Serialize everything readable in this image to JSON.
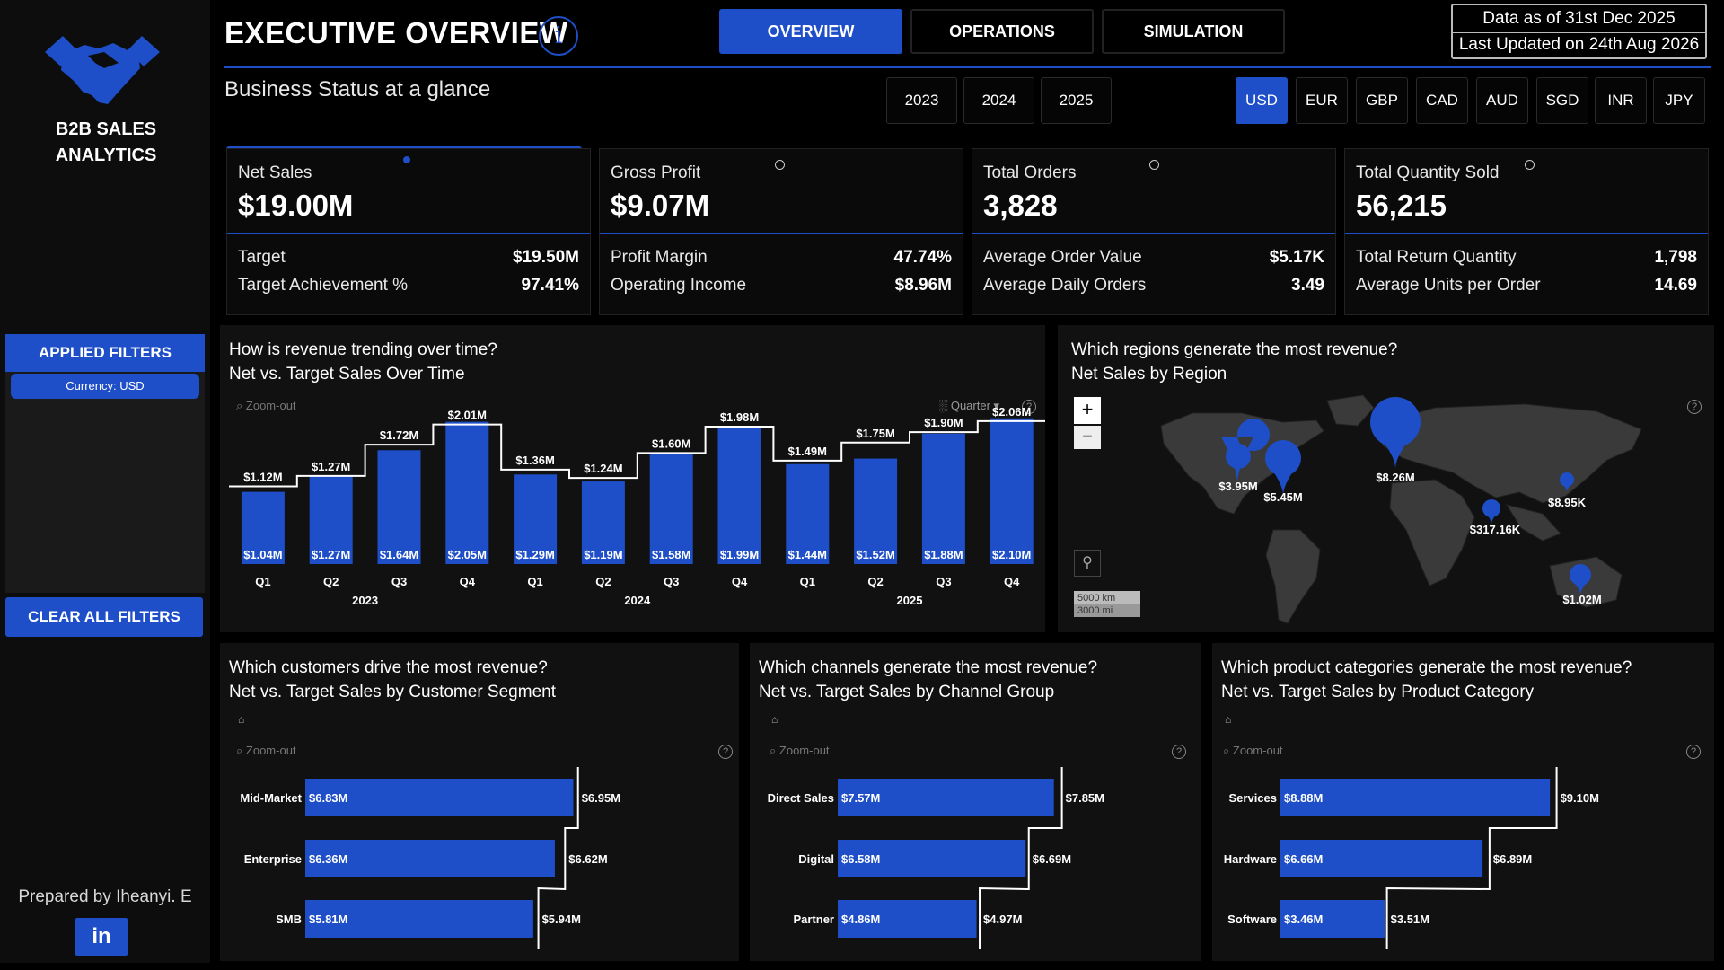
{
  "sidebar": {
    "brand_title_line1": "B2B SALES",
    "brand_title_line2": "ANALYTICS",
    "applied_filters_label": "APPLIED FILTERS",
    "filter_chip": "Currency: USD",
    "clear_filters_label": "CLEAR ALL FILTERS",
    "prepared_by": "Prepared by Iheanyi. E",
    "linkedin_label": "in",
    "logo_icon": "handshake-icon"
  },
  "header": {
    "title": "EXECUTIVE OVERVIEW",
    "info_glyph": "i",
    "subtitle": "Business Status at a glance",
    "tabs": [
      {
        "label": "OVERVIEW",
        "active": true
      },
      {
        "label": "OPERATIONS",
        "active": false
      },
      {
        "label": "SIMULATION",
        "active": false
      }
    ],
    "data_asof": "Data as of 31st Dec 2025",
    "last_updated": "Last Updated on 24th Aug 2026"
  },
  "year_slicer": [
    "2023",
    "2024",
    "2025"
  ],
  "currency_slicer": {
    "options": [
      "USD",
      "EUR",
      "GBP",
      "CAD",
      "AUD",
      "SGD",
      "INR",
      "JPY"
    ],
    "selected": "USD"
  },
  "kpis": [
    {
      "label": "Net Sales",
      "value": "$19.00M",
      "rows": [
        [
          "Target",
          "$19.50M"
        ],
        [
          "Target Achievement %",
          "97.41%"
        ]
      ]
    },
    {
      "label": "Gross Profit",
      "value": "$9.07M",
      "rows": [
        [
          "Profit Margin",
          "47.74%"
        ],
        [
          "Operating Income",
          "$8.96M"
        ]
      ]
    },
    {
      "label": "Total Orders",
      "value": "3,828",
      "rows": [
        [
          "Average Order Value",
          "$5.17K"
        ],
        [
          "Average Daily Orders",
          "3.49"
        ]
      ]
    },
    {
      "label": "Total Quantity Sold",
      "value": "56,215",
      "rows": [
        [
          "Total Return Quantity",
          "1,798"
        ],
        [
          "Average Units per Order",
          "14.69"
        ]
      ]
    }
  ],
  "accent_color": "#1e4fc8",
  "trend_panel": {
    "question": "How is revenue trending over time?",
    "subtitle": "Net vs. Target Sales Over Time",
    "zoom_out": "Zoom-out",
    "granularity": "Quarter",
    "help": "?"
  },
  "region_panel": {
    "question": "Which regions generate the most revenue?",
    "subtitle": "Net Sales by Region",
    "zoom_in": "+",
    "zoom_out_btn": "−",
    "scale_km": "5000 km",
    "scale_mi": "3000 mi",
    "help": "?",
    "markers": [
      {
        "label": "$3.95M"
      },
      {
        "label": "$5.45M"
      },
      {
        "label": "$8.26M"
      },
      {
        "label": "$8.95K"
      },
      {
        "label": "$317.16K"
      },
      {
        "label": "$1.02M"
      }
    ]
  },
  "segment_panel": {
    "question": "Which customers drive the most revenue?",
    "subtitle": "Net vs. Target Sales by Customer Segment",
    "zoom_out": "Zoom-out",
    "help": "?"
  },
  "channel_panel": {
    "question": "Which channels generate the most revenue?",
    "subtitle": "Net vs. Target Sales by Channel Group",
    "zoom_out": "Zoom-out",
    "help": "?"
  },
  "category_panel": {
    "question": "Which product categories generate the most revenue?",
    "subtitle": "Net vs. Target Sales by Product Category",
    "zoom_out": "Zoom-out",
    "help": "?"
  },
  "chart_data": [
    {
      "type": "bar",
      "categories": [
        "Q1",
        "Q2",
        "Q3",
        "Q4",
        "Q1",
        "Q2",
        "Q3",
        "Q4",
        "Q1",
        "Q2",
        "Q3",
        "Q4"
      ],
      "groups": [
        "2023",
        "2024",
        "2025"
      ],
      "series": [
        {
          "name": "Net Sales",
          "values": [
            1.04,
            1.27,
            1.64,
            2.05,
            1.29,
            1.19,
            1.58,
            1.99,
            1.44,
            1.52,
            1.88,
            2.1
          ],
          "labels": [
            "$1.04M",
            "$1.27M",
            "$1.64M",
            "$2.05M",
            "$1.29M",
            "$1.19M",
            "$1.58M",
            "$1.99M",
            "$1.44M",
            "$1.52M",
            "$1.88M",
            "$2.10M"
          ]
        },
        {
          "name": "Target",
          "values": [
            1.12,
            1.27,
            1.72,
            2.01,
            1.36,
            1.24,
            1.6,
            1.98,
            1.49,
            1.75,
            1.9,
            2.06
          ],
          "labels": [
            "$1.12M",
            "$1.27M",
            "$1.72M",
            "$2.01M",
            "$1.36M",
            "$1.24M",
            "$1.60M",
            "$1.98M",
            "$1.49M",
            "$1.75M",
            "$1.90M",
            "$2.06M"
          ]
        }
      ],
      "ylim": [
        0,
        2.2
      ]
    },
    {
      "type": "bar",
      "orientation": "horizontal",
      "categories": [
        "Mid-Market",
        "Enterprise",
        "SMB"
      ],
      "series": [
        {
          "name": "Net Sales",
          "values": [
            6.83,
            6.36,
            5.81
          ],
          "labels": [
            "$6.83M",
            "$6.36M",
            "$5.81M"
          ]
        },
        {
          "name": "Target",
          "values": [
            6.95,
            6.62,
            5.94
          ],
          "labels": [
            "$6.95M",
            "$6.62M",
            "$5.94M"
          ]
        }
      ]
    },
    {
      "type": "bar",
      "orientation": "horizontal",
      "categories": [
        "Direct Sales",
        "Digital",
        "Partner"
      ],
      "series": [
        {
          "name": "Net Sales",
          "values": [
            7.57,
            6.58,
            4.86
          ],
          "labels": [
            "$7.57M",
            "$6.58M",
            "$4.86M"
          ]
        },
        {
          "name": "Target",
          "values": [
            7.85,
            6.69,
            4.97
          ],
          "labels": [
            "$7.85M",
            "$6.69M",
            "$4.97M"
          ]
        }
      ]
    },
    {
      "type": "bar",
      "orientation": "horizontal",
      "categories": [
        "Services",
        "Hardware",
        "Software"
      ],
      "series": [
        {
          "name": "Net Sales",
          "values": [
            8.88,
            6.66,
            3.46
          ],
          "labels": [
            "$8.88M",
            "$6.66M",
            "$3.46M"
          ]
        },
        {
          "name": "Target",
          "values": [
            9.1,
            6.89,
            3.51
          ],
          "labels": [
            "$9.10M",
            "$6.89M",
            "$3.51M"
          ]
        }
      ]
    }
  ]
}
